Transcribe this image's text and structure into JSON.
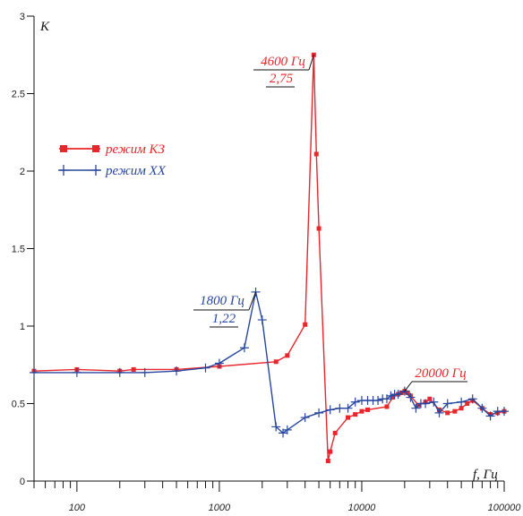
{
  "chart_data": {
    "type": "line",
    "x_scale": "log",
    "xlim": [
      50,
      100000
    ],
    "ylim": [
      0,
      3
    ],
    "xlabel": "f, Гц",
    "ylabel": "K",
    "x_tick_labels": [
      "100",
      "1000",
      "10000",
      "100000"
    ],
    "y_tick_labels": [
      "0",
      "0.5",
      "1",
      "1.5",
      "2",
      "2.5",
      "3"
    ],
    "legend_position": "left",
    "grid": false,
    "series": [
      {
        "name": "режим КЗ",
        "color": "#e8262b",
        "marker": "square",
        "x": [
          50,
          100,
          200,
          250,
          500,
          1000,
          2500,
          3000,
          4000,
          4600,
          4800,
          5000,
          5800,
          6000,
          6500,
          8000,
          9000,
          10000,
          11000,
          15000,
          16500,
          18000,
          19000,
          20000,
          21000,
          22000,
          25000,
          28000,
          30000,
          35000,
          40000,
          45000,
          50000,
          55000,
          60000,
          70000,
          80000,
          90000,
          100000
        ],
        "values": [
          0.71,
          0.72,
          0.71,
          0.72,
          0.72,
          0.74,
          0.77,
          0.81,
          1.01,
          2.75,
          2.11,
          1.63,
          0.13,
          0.19,
          0.31,
          0.41,
          0.43,
          0.45,
          0.46,
          0.48,
          0.54,
          0.56,
          0.57,
          0.58,
          0.57,
          0.55,
          0.49,
          0.51,
          0.53,
          0.46,
          0.44,
          0.45,
          0.47,
          0.5,
          0.52,
          0.47,
          0.43,
          0.44,
          0.45
        ]
      },
      {
        "name": "режим ХХ",
        "color": "#27479e",
        "marker": "plus",
        "x": [
          50,
          100,
          200,
          300,
          500,
          800,
          1000,
          1500,
          1800,
          2000,
          2500,
          2800,
          3000,
          4000,
          5000,
          6000,
          7000,
          8000,
          9000,
          10000,
          11000,
          12000,
          13000,
          14000,
          15000,
          16000,
          17000,
          18000,
          20000,
          22000,
          24000,
          26000,
          28000,
          32000,
          35000,
          40000,
          50000,
          60000,
          70000,
          80000,
          90000,
          100000
        ],
        "values": [
          0.7,
          0.7,
          0.7,
          0.7,
          0.71,
          0.73,
          0.76,
          0.86,
          1.22,
          1.04,
          0.35,
          0.31,
          0.33,
          0.41,
          0.44,
          0.46,
          0.47,
          0.47,
          0.51,
          0.52,
          0.52,
          0.52,
          0.52,
          0.53,
          0.53,
          0.55,
          0.56,
          0.56,
          0.58,
          0.54,
          0.47,
          0.5,
          0.5,
          0.51,
          0.44,
          0.5,
          0.51,
          0.53,
          0.47,
          0.42,
          0.45,
          0.45
        ]
      }
    ],
    "annotations": [
      {
        "line1": "4600 Гц",
        "line2": "2,75",
        "color": "#e8262b",
        "x": 4600,
        "y": 2.75
      },
      {
        "line1": "1800 Гц",
        "line2": "1,22",
        "color": "#27479e",
        "x": 1800,
        "y": 1.22
      },
      {
        "line1": "20000 Гц",
        "line2": "",
        "color": "#e8262b",
        "x": 20000,
        "y": 0.58
      }
    ]
  }
}
